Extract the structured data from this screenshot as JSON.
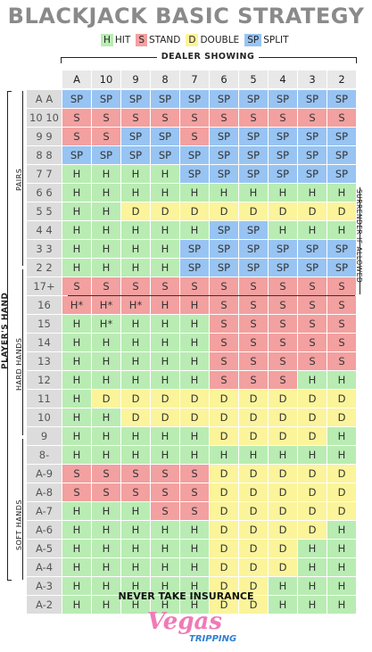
{
  "title": "BLACKJACK BASIC STRATEGY",
  "legend": [
    {
      "code": "H",
      "label": "HIT",
      "color": "#b9ecb3"
    },
    {
      "code": "S",
      "label": "STAND",
      "color": "#f3a0a0"
    },
    {
      "code": "D",
      "label": "DOUBLE",
      "color": "#fbf49a"
    },
    {
      "code": "SP",
      "label": "SPLIT",
      "color": "#98c4f3"
    }
  ],
  "dealer_label": "DEALER SHOWING",
  "dealer_cards": [
    "A",
    "10",
    "9",
    "8",
    "7",
    "6",
    "5",
    "4",
    "3",
    "2"
  ],
  "side_labels": {
    "players_hand": "PLAYER'S HAND",
    "pairs": "PAIRS",
    "hard_hands": "HARD HANDS",
    "soft_hands": "SOFT HANDS",
    "surrender": "SURRENDER IF ALLOWED"
  },
  "rows": [
    {
      "label": "A A",
      "cells": [
        "SP",
        "SP",
        "SP",
        "SP",
        "SP",
        "SP",
        "SP",
        "SP",
        "SP",
        "SP"
      ]
    },
    {
      "label": "10 10",
      "cells": [
        "S",
        "S",
        "S",
        "S",
        "S",
        "S",
        "S",
        "S",
        "S",
        "S"
      ]
    },
    {
      "label": "9 9",
      "cells": [
        "S",
        "S",
        "SP",
        "SP",
        "S",
        "SP",
        "SP",
        "SP",
        "SP",
        "SP"
      ]
    },
    {
      "label": "8 8",
      "cells": [
        "SP",
        "SP",
        "SP",
        "SP",
        "SP",
        "SP",
        "SP",
        "SP",
        "SP",
        "SP"
      ]
    },
    {
      "label": "7 7",
      "cells": [
        "H",
        "H",
        "H",
        "H",
        "SP",
        "SP",
        "SP",
        "SP",
        "SP",
        "SP"
      ]
    },
    {
      "label": "6 6",
      "cells": [
        "H",
        "H",
        "H",
        "H",
        "H",
        "H",
        "H",
        "H",
        "H",
        "H"
      ]
    },
    {
      "label": "5 5",
      "cells": [
        "H",
        "H",
        "D",
        "D",
        "D",
        "D",
        "D",
        "D",
        "D",
        "D"
      ]
    },
    {
      "label": "4 4",
      "cells": [
        "H",
        "H",
        "H",
        "H",
        "H",
        "SP",
        "SP",
        "H",
        "H",
        "H"
      ]
    },
    {
      "label": "3 3",
      "cells": [
        "H",
        "H",
        "H",
        "H",
        "SP",
        "SP",
        "SP",
        "SP",
        "SP",
        "SP"
      ]
    },
    {
      "label": "2 2",
      "cells": [
        "H",
        "H",
        "H",
        "H",
        "SP",
        "SP",
        "SP",
        "SP",
        "SP",
        "SP"
      ]
    },
    {
      "label": "17+",
      "cells": [
        "S",
        "S",
        "S",
        "S",
        "S",
        "S",
        "S",
        "S",
        "S",
        "S"
      ]
    },
    {
      "label": "16",
      "cells": [
        "H*",
        "H*",
        "H*",
        "H",
        "H",
        "S",
        "S",
        "S",
        "S",
        "S"
      ],
      "colors": [
        "S",
        "S",
        "S",
        "S",
        "S",
        "S",
        "S",
        "S",
        "S",
        "S"
      ]
    },
    {
      "label": "15",
      "cells": [
        "H",
        "H*",
        "H",
        "H",
        "H",
        "S",
        "S",
        "S",
        "S",
        "S"
      ],
      "colors": [
        "H",
        "H",
        "H",
        "H",
        "H",
        "S",
        "S",
        "S",
        "S",
        "S"
      ]
    },
    {
      "label": "14",
      "cells": [
        "H",
        "H",
        "H",
        "H",
        "H",
        "S",
        "S",
        "S",
        "S",
        "S"
      ]
    },
    {
      "label": "13",
      "cells": [
        "H",
        "H",
        "H",
        "H",
        "H",
        "S",
        "S",
        "S",
        "S",
        "S"
      ]
    },
    {
      "label": "12",
      "cells": [
        "H",
        "H",
        "H",
        "H",
        "H",
        "S",
        "S",
        "S",
        "H",
        "H"
      ]
    },
    {
      "label": "11",
      "cells": [
        "H",
        "D",
        "D",
        "D",
        "D",
        "D",
        "D",
        "D",
        "D",
        "D"
      ]
    },
    {
      "label": "10",
      "cells": [
        "H",
        "H",
        "D",
        "D",
        "D",
        "D",
        "D",
        "D",
        "D",
        "D"
      ]
    },
    {
      "label": "9",
      "cells": [
        "H",
        "H",
        "H",
        "H",
        "H",
        "D",
        "D",
        "D",
        "D",
        "H"
      ]
    },
    {
      "label": "8-",
      "cells": [
        "H",
        "H",
        "H",
        "H",
        "H",
        "H",
        "H",
        "H",
        "H",
        "H"
      ]
    },
    {
      "label": "A-9",
      "cells": [
        "S",
        "S",
        "S",
        "S",
        "S",
        "D",
        "D",
        "D",
        "D",
        "D"
      ]
    },
    {
      "label": "A-8",
      "cells": [
        "S",
        "S",
        "S",
        "S",
        "S",
        "D",
        "D",
        "D",
        "D",
        "D"
      ]
    },
    {
      "label": "A-7",
      "cells": [
        "H",
        "H",
        "H",
        "S",
        "S",
        "D",
        "D",
        "D",
        "D",
        "D"
      ]
    },
    {
      "label": "A-6",
      "cells": [
        "H",
        "H",
        "H",
        "H",
        "H",
        "D",
        "D",
        "D",
        "D",
        "H"
      ]
    },
    {
      "label": "A-5",
      "cells": [
        "H",
        "H",
        "H",
        "H",
        "H",
        "D",
        "D",
        "D",
        "H",
        "H"
      ]
    },
    {
      "label": "A-4",
      "cells": [
        "H",
        "H",
        "H",
        "H",
        "H",
        "D",
        "D",
        "D",
        "H",
        "H"
      ]
    },
    {
      "label": "A-3",
      "cells": [
        "H",
        "H",
        "H",
        "H",
        "H",
        "D",
        "D",
        "H",
        "H",
        "H"
      ]
    },
    {
      "label": "A-2",
      "cells": [
        "H",
        "H",
        "H",
        "H",
        "H",
        "D",
        "D",
        "H",
        "H",
        "H"
      ]
    }
  ],
  "footer": "NEVER TAKE INSURANCE",
  "logo_top": "Vegas",
  "logo_bottom": "TRIPPING"
}
